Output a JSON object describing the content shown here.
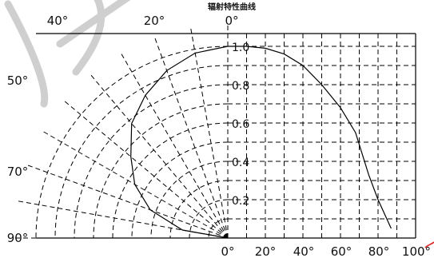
{
  "chart_data": {
    "type": "polar-line",
    "title": "辐射特性曲线",
    "angle_labels_top": [
      "40°",
      "20°",
      "0°"
    ],
    "angle_labels_left": [
      "50°",
      "70°",
      "90°"
    ],
    "angle_labels_bottom": [
      "0°",
      "20°",
      "40°",
      "60°",
      "80°",
      "100°"
    ],
    "radial_labels": [
      "1.0",
      "0.8",
      "0.6",
      "0.4",
      "0.2"
    ],
    "radial_ticks": [
      0.2,
      0.4,
      0.6,
      0.8,
      1.0
    ],
    "radial_max": 1.0,
    "polar_angles": [
      0,
      10,
      20,
      30,
      40,
      50,
      60,
      70,
      80,
      90
    ],
    "polar_curve": {
      "angle_deg": [
        0,
        10,
        20,
        30,
        40,
        50,
        60,
        70,
        80,
        90
      ],
      "value": [
        1.0,
        0.98,
        0.93,
        0.86,
        0.78,
        0.66,
        0.56,
        0.43,
        0.24,
        0.0
      ]
    },
    "cartesian_curve": {
      "x": [
        0,
        10,
        20,
        30,
        40,
        50,
        60,
        68,
        75,
        80,
        87
      ],
      "y": [
        1.0,
        1.0,
        0.99,
        0.96,
        0.9,
        0.8,
        0.68,
        0.55,
        0.33,
        0.2,
        0.05
      ]
    },
    "x_axis": {
      "min": 0,
      "max": 100,
      "grid_step": 10
    },
    "grid": true
  }
}
